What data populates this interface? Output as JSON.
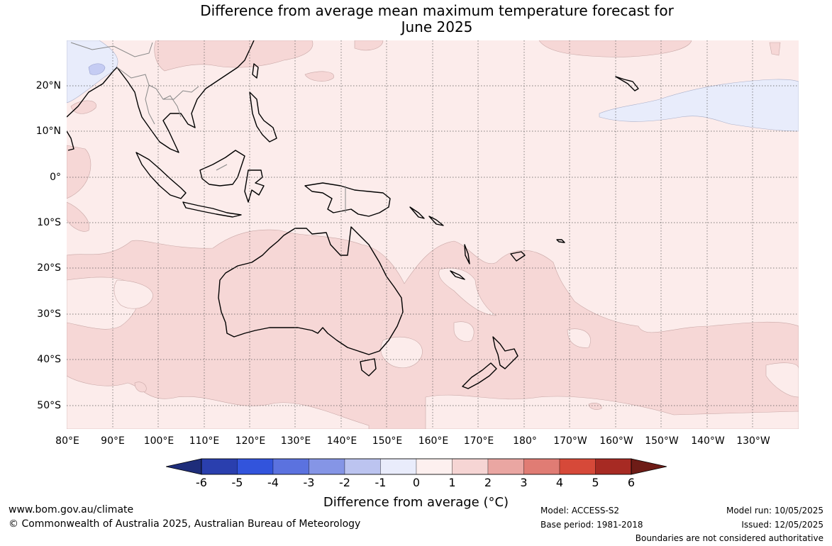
{
  "title": {
    "line1": "Difference from average mean maximum temperature forecast for",
    "line2": "June 2025"
  },
  "map": {
    "lat_labels": [
      "20°N",
      "10°N",
      "0°",
      "10°S",
      "20°S",
      "30°S",
      "40°S",
      "50°S"
    ],
    "lon_labels": [
      "80°E",
      "90°E",
      "100°E",
      "110°E",
      "120°E",
      "130°E",
      "140°E",
      "150°E",
      "160°E",
      "170°E",
      "180°",
      "170°W",
      "160°W",
      "150°W",
      "140°W",
      "130°W"
    ],
    "colors": {
      "background_0_to_1": "#fceceb",
      "band_1_to_2": "#f6d7d6",
      "band_neg1_to_0": "#e8ecfb",
      "band_neg2_to_neg1": "#c5ccf3",
      "graticule": "#555555",
      "coast": "#000000",
      "border": "#888888"
    }
  },
  "colorbar": {
    "ticks": [
      "-6",
      "-5",
      "-4",
      "-3",
      "-2",
      "-1",
      "0",
      "1",
      "2",
      "3",
      "4",
      "5",
      "6"
    ],
    "colors": [
      "#1e2d7a",
      "#2a3fae",
      "#3254dc",
      "#5b72df",
      "#8595e6",
      "#bcc4f0",
      "#e9ecfb",
      "#fdf0ef",
      "#f6d5d4",
      "#eaa6a2",
      "#e07c74",
      "#d64939",
      "#a72a23",
      "#6e1c17"
    ],
    "label": "Difference from average (°C)"
  },
  "footer": {
    "url": "www.bom.gov.au/climate",
    "copyright": "© Commonwealth of Australia 2025, Australian Bureau of Meteorology",
    "model": "Model: ACCESS-S2",
    "base_period": "Base period: 1981-2018",
    "model_run": "Model run: 10/05/2025",
    "issued": "Issued: 12/05/2025",
    "boundaries": "Boundaries are not considered authoritative"
  }
}
